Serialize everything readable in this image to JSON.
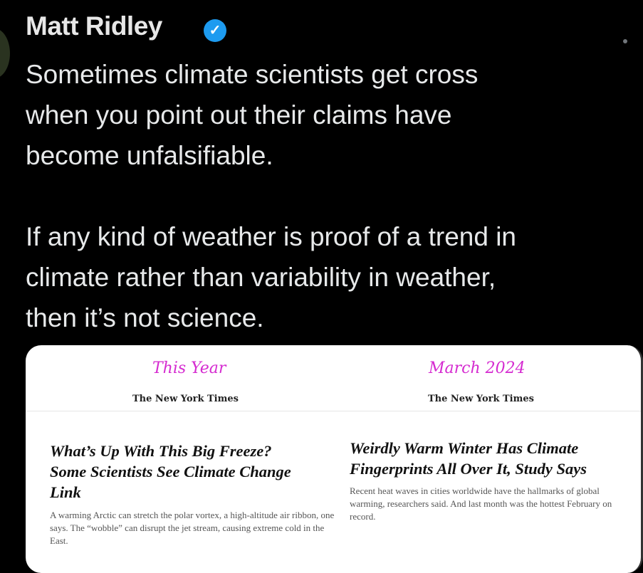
{
  "tweet": {
    "author": "Matt Ridley",
    "verified": true,
    "accent": "#1d9bf0",
    "text": "Sometimes climate scientists get cross\nwhen you point out their claims have\nbecome unfalsifiable.\n\nIf any kind of weather is proof of a trend in\nclimate rather than variability in weather,\nthen it’s not science."
  },
  "image": {
    "left": {
      "label": "This Year",
      "masthead": "The New York Times",
      "headline": "What’s Up With This Big Freeze? Some Scientists See Climate Change Link",
      "summary": "A warming Arctic can stretch the polar vortex, a high-altitude air ribbon, one says. The “wobble” can disrupt the jet stream, causing extreme cold in the East."
    },
    "right": {
      "label": "March 2024",
      "masthead": "The New York Times",
      "headline": "Weirdly Warm Winter Has Climate Fingerprints All Over It, Study Says",
      "summary": "Recent heat waves in cities worldwide have the hallmarks of global warming, researchers said. And last month was the hottest February on record."
    },
    "label_color": "#d52bd0"
  }
}
